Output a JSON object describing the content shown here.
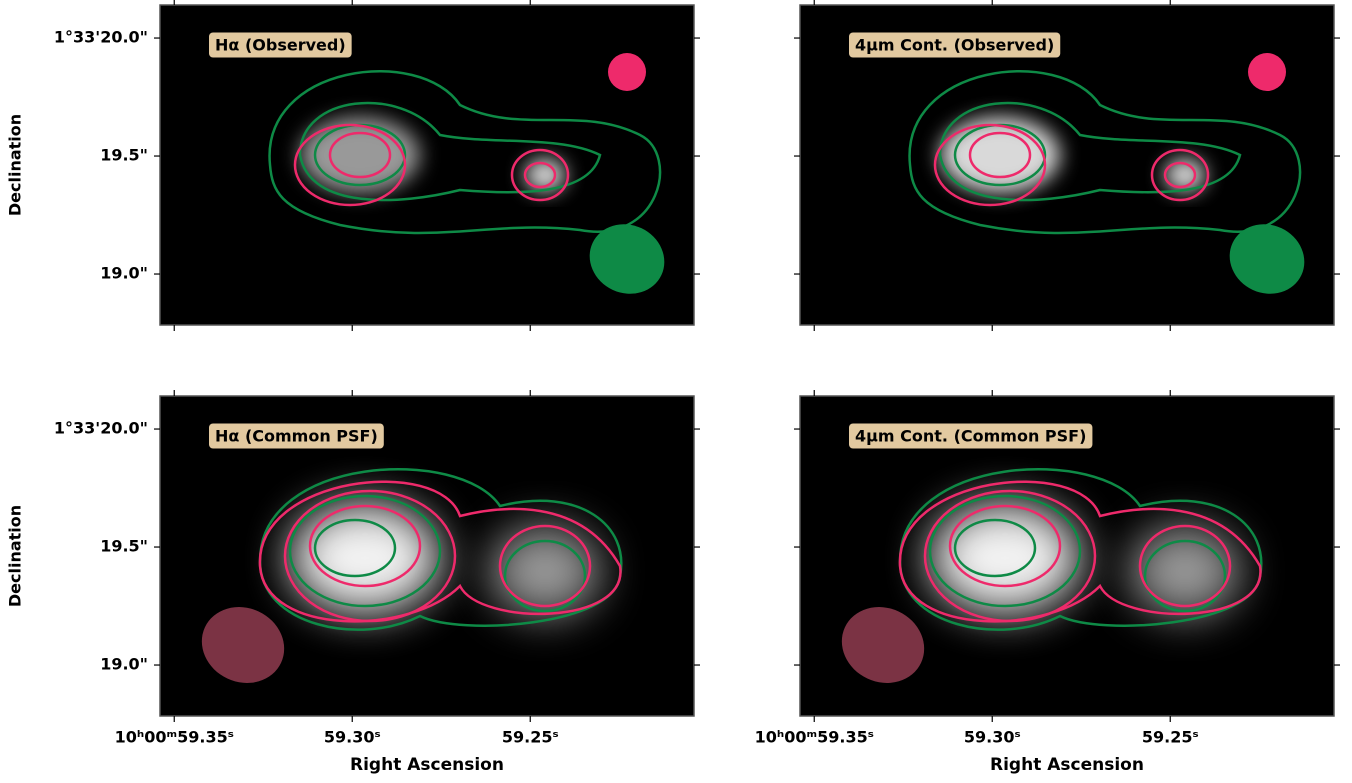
{
  "chart_data": [
    {
      "type": "image",
      "title": "Hα (Observed)",
      "ylabel": "Declination",
      "xlim": [
        59.354,
        59.204
      ],
      "ylim": [
        18.784,
        20.14
      ],
      "yticks": [
        {
          "value": 20.0,
          "label": "1°33'20.0\""
        },
        {
          "value": 19.5,
          "label": "19.5\""
        },
        {
          "value": 19.0,
          "label": "19.0\""
        }
      ]
    },
    {
      "type": "image",
      "title": "4μm Cont. (Observed)",
      "xlim": [
        59.354,
        59.204
      ],
      "ylim": [
        18.784,
        20.14
      ]
    },
    {
      "type": "image",
      "title": "Hα (Common PSF)",
      "ylabel": "Declination",
      "xlabel": "Right Ascension",
      "xlim": [
        59.354,
        59.204
      ],
      "ylim": [
        18.784,
        20.14
      ],
      "xticks": [
        {
          "value": 59.35,
          "label": "10ʰ00ᵐ59.35ˢ"
        },
        {
          "value": 59.3,
          "label": "59.30ˢ"
        },
        {
          "value": 59.25,
          "label": "59.25ˢ"
        }
      ],
      "yticks": [
        {
          "value": 20.0,
          "label": "1°33'20.0\""
        },
        {
          "value": 19.5,
          "label": "19.5\""
        },
        {
          "value": 19.0,
          "label": "19.0\""
        }
      ]
    },
    {
      "type": "image",
      "title": "4μm Cont. (Common PSF)",
      "xlabel": "Right Ascension",
      "xlim": [
        59.354,
        59.204
      ],
      "ylim": [
        18.784,
        20.14
      ],
      "xticks": [
        {
          "value": 59.35,
          "label": "10ʰ00ᵐ59.35ˢ"
        },
        {
          "value": 59.3,
          "label": "59.30ˢ"
        },
        {
          "value": 59.25,
          "label": "59.25ˢ"
        }
      ]
    }
  ]
}
